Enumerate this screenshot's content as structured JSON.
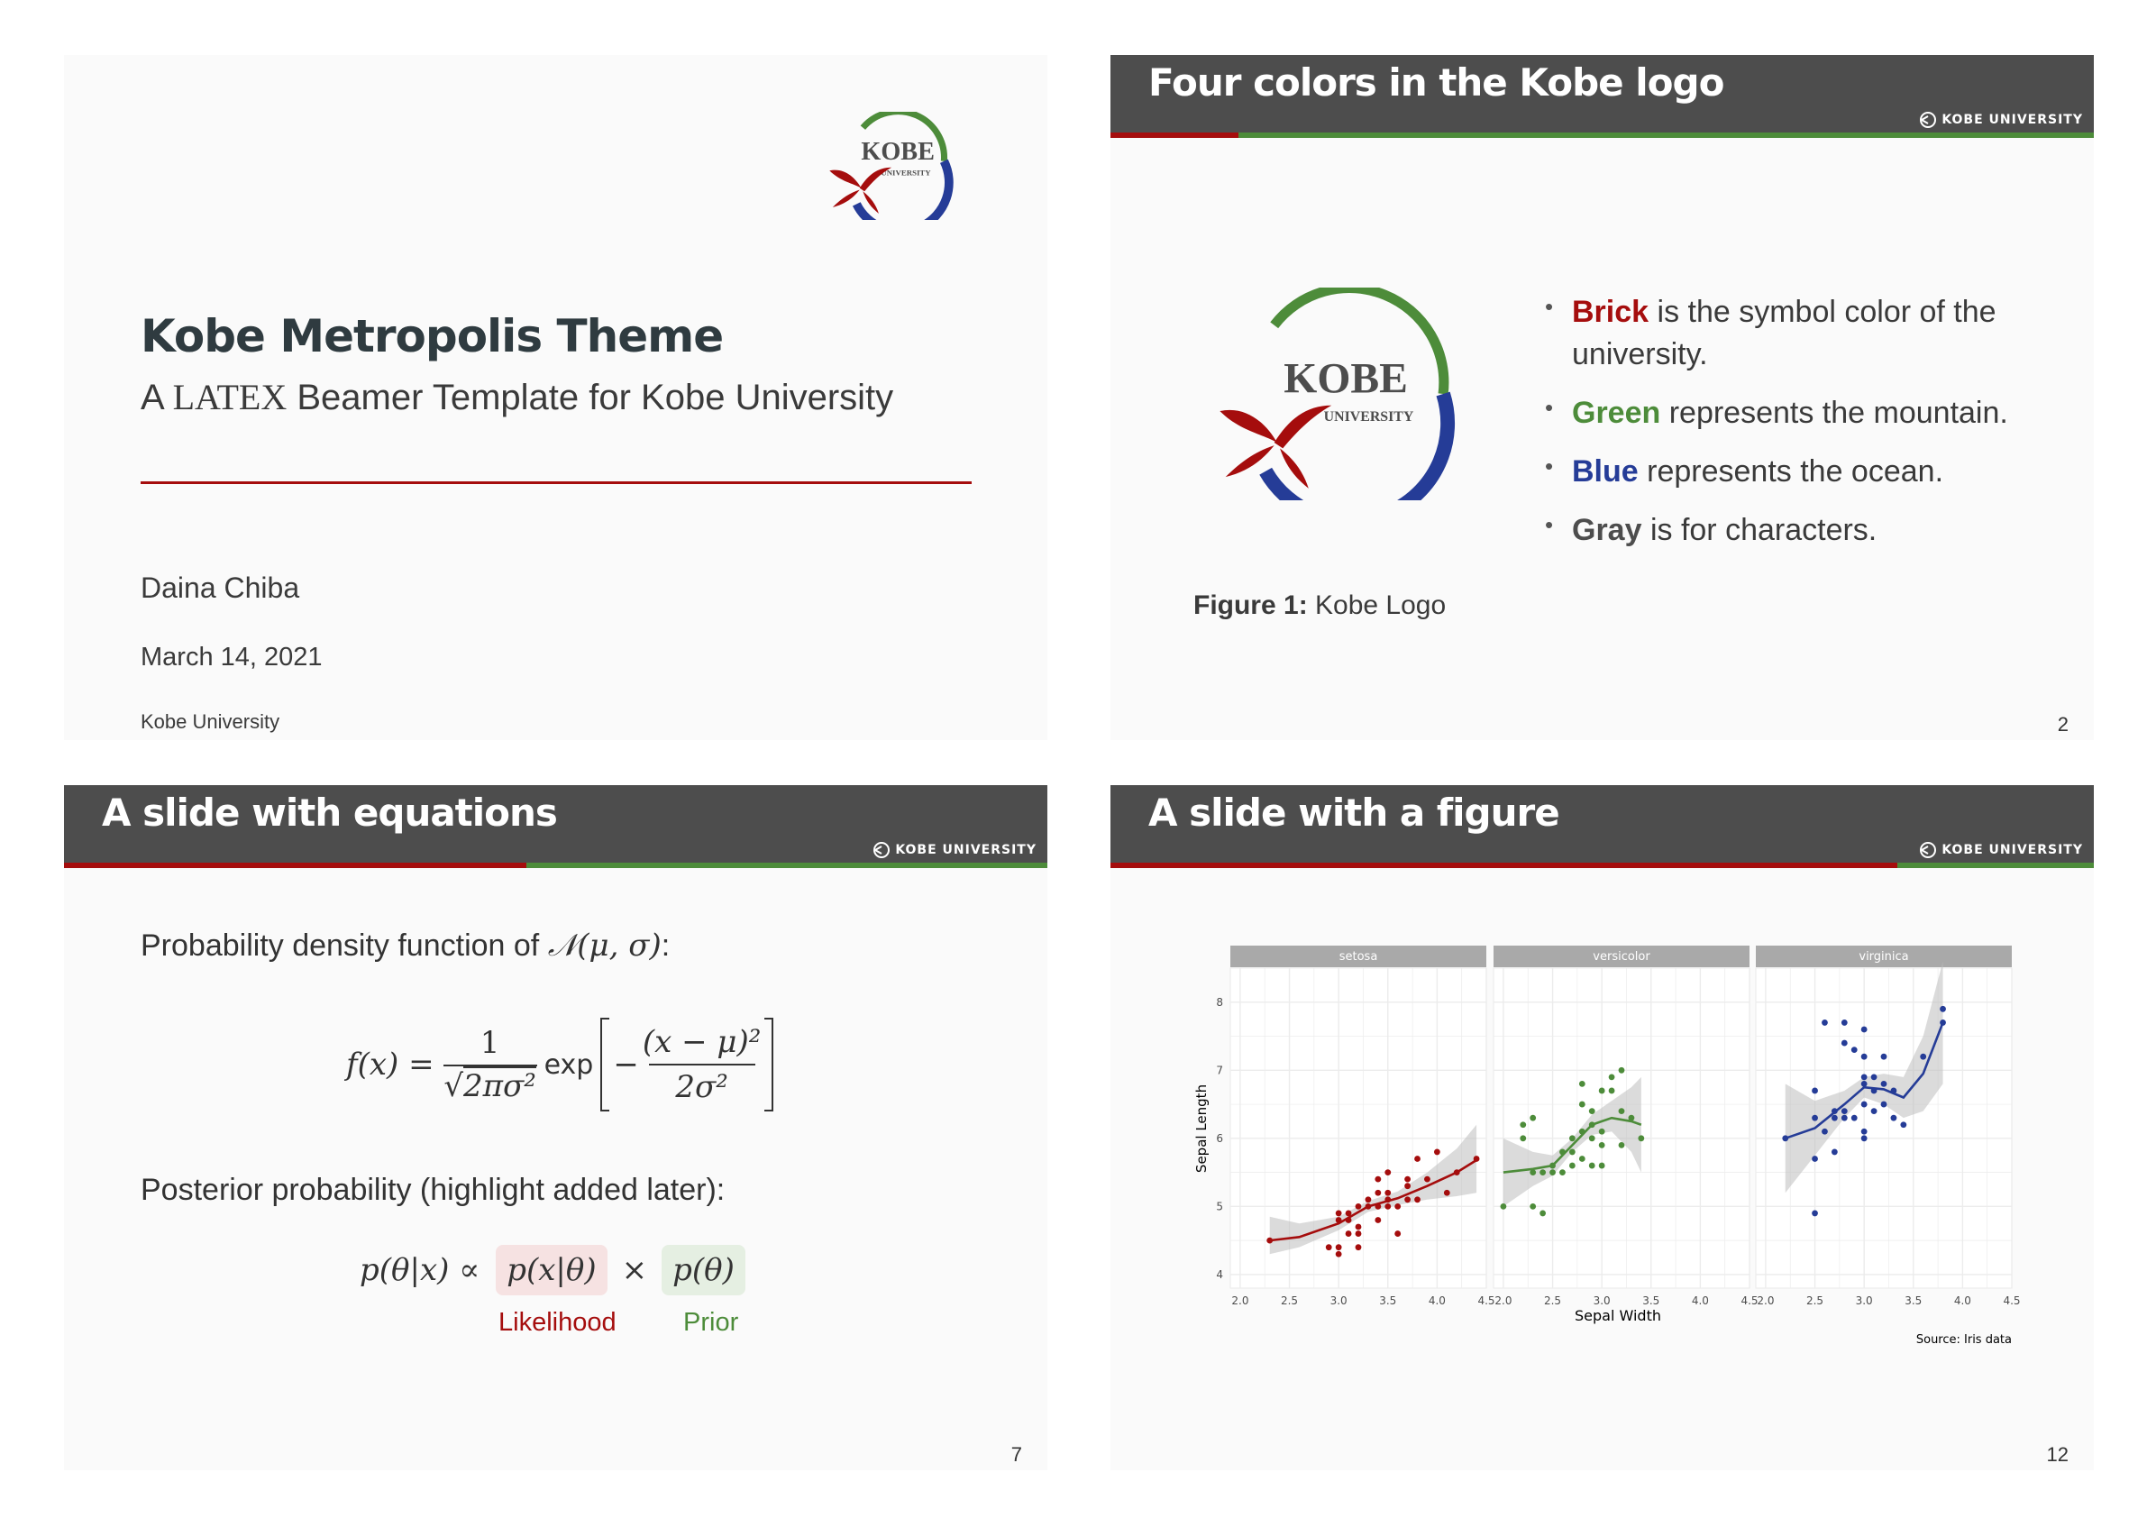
{
  "colors": {
    "brick": "#a50d0d",
    "green": "#4d8c3a",
    "blue": "#253c97",
    "gray": "#4d4d4d"
  },
  "slide1": {
    "title": "Kobe Metropolis Theme",
    "subtitle_prefix": "A",
    "subtitle_latex": "LATEX",
    "subtitle_suffix": "Beamer Template for Kobe University",
    "author": "Daina Chiba",
    "date": "March 14, 2021",
    "institute": "Kobe University",
    "logo_text": "KOBE",
    "logo_subtext": "UNIVERSITY"
  },
  "slide2": {
    "title": "Four colors in the Kobe logo",
    "brand": "KOBE UNIVERSITY",
    "progress": 0.13,
    "page": "2",
    "logo_text": "KOBE",
    "logo_subtext": "UNIVERSITY",
    "caption_label": "Figure 1:",
    "caption_text": "Kobe Logo",
    "bullets": [
      {
        "keyword": "Brick",
        "color": "#a50d0d",
        "rest": "is the symbol color of the university."
      },
      {
        "keyword": "Green",
        "color": "#4d8c3a",
        "rest": "represents the mountain."
      },
      {
        "keyword": "Blue",
        "color": "#253c97",
        "rest": "represents the ocean."
      },
      {
        "keyword": "Gray",
        "color": "#4d4d4d",
        "rest": "is for characters."
      }
    ]
  },
  "slide3": {
    "title": "A slide with equations",
    "brand": "KOBE UNIVERSITY",
    "progress": 0.47,
    "page": "7",
    "text1_prefix": "Probability density function of",
    "text1_math": "𝒩(μ, σ)",
    "text1_suffix": ":",
    "eq1": {
      "lhs": "f(x) =",
      "num": "1",
      "den_root": "√",
      "den": "2πσ²",
      "exp": "exp",
      "minus": "−",
      "inner_num": "(x − μ)²",
      "inner_den": "2σ²"
    },
    "text2": "Posterior probability (highlight added later):",
    "eq2": {
      "lhs": "p(θ|x) ∝",
      "likelihood": "p(x|θ)",
      "times": "×",
      "prior": "p(θ)"
    },
    "likelihood_label": "Likelihood",
    "prior_label": "Prior"
  },
  "slide4": {
    "title": "A slide with a figure",
    "brand": "KOBE UNIVERSITY",
    "progress": 0.8,
    "page": "12",
    "chart_data": {
      "type": "scatter",
      "facets": [
        "setosa",
        "versicolor",
        "virginica"
      ],
      "xlabel": "Sepal Width",
      "ylabel": "Sepal Length",
      "caption": "Source: Iris data",
      "xlim": [
        1.9,
        4.5
      ],
      "ylim": [
        3.8,
        8.5
      ],
      "xticks": [
        "2.0",
        "2.5",
        "3.0",
        "3.5",
        "4.0",
        "4.5"
      ],
      "yticks": [
        "4",
        "5",
        "6",
        "7",
        "8"
      ],
      "grid": true,
      "series": [
        {
          "name": "setosa",
          "color": "#a50d0d",
          "points": [
            [
              2.3,
              4.5
            ],
            [
              2.9,
              4.4
            ],
            [
              3.0,
              4.3
            ],
            [
              3.0,
              4.4
            ],
            [
              3.0,
              4.8
            ],
            [
              3.0,
              4.9
            ],
            [
              3.1,
              4.6
            ],
            [
              3.1,
              4.8
            ],
            [
              3.1,
              4.9
            ],
            [
              3.2,
              4.4
            ],
            [
              3.2,
              4.6
            ],
            [
              3.2,
              4.7
            ],
            [
              3.2,
              5.0
            ],
            [
              3.3,
              5.0
            ],
            [
              3.3,
              5.1
            ],
            [
              3.4,
              4.8
            ],
            [
              3.4,
              5.0
            ],
            [
              3.4,
              5.2
            ],
            [
              3.4,
              5.4
            ],
            [
              3.5,
              5.0
            ],
            [
              3.5,
              5.1
            ],
            [
              3.5,
              5.2
            ],
            [
              3.5,
              5.5
            ],
            [
              3.6,
              4.6
            ],
            [
              3.6,
              5.0
            ],
            [
              3.7,
              5.1
            ],
            [
              3.7,
              5.3
            ],
            [
              3.7,
              5.4
            ],
            [
              3.8,
              5.1
            ],
            [
              3.8,
              5.7
            ],
            [
              3.9,
              5.4
            ],
            [
              4.0,
              5.8
            ],
            [
              4.1,
              5.2
            ],
            [
              4.2,
              5.5
            ],
            [
              4.4,
              5.7
            ]
          ],
          "fit": [
            [
              2.3,
              4.5
            ],
            [
              2.6,
              4.55
            ],
            [
              3.0,
              4.75
            ],
            [
              3.3,
              5.0
            ],
            [
              3.6,
              5.12
            ],
            [
              3.9,
              5.3
            ],
            [
              4.2,
              5.5
            ],
            [
              4.4,
              5.68
            ]
          ],
          "band_lo": [
            4.3,
            4.4,
            4.65,
            4.92,
            5.02,
            5.1,
            5.15,
            5.2
          ],
          "band_hi": [
            4.85,
            4.75,
            4.85,
            5.08,
            5.22,
            5.5,
            5.85,
            6.2
          ]
        },
        {
          "name": "versicolor",
          "color": "#4d8c3a",
          "points": [
            [
              2.0,
              5.0
            ],
            [
              2.2,
              6.0
            ],
            [
              2.2,
              6.2
            ],
            [
              2.3,
              5.5
            ],
            [
              2.3,
              6.3
            ],
            [
              2.3,
              5.0
            ],
            [
              2.4,
              4.9
            ],
            [
              2.4,
              5.5
            ],
            [
              2.5,
              5.6
            ],
            [
              2.5,
              5.5
            ],
            [
              2.6,
              5.8
            ],
            [
              2.6,
              5.5
            ],
            [
              2.7,
              5.6
            ],
            [
              2.7,
              5.8
            ],
            [
              2.7,
              6.0
            ],
            [
              2.8,
              6.1
            ],
            [
              2.8,
              6.5
            ],
            [
              2.8,
              5.7
            ],
            [
              2.9,
              6.4
            ],
            [
              2.9,
              6.0
            ],
            [
              2.9,
              5.6
            ],
            [
              3.0,
              6.7
            ],
            [
              3.0,
              5.9
            ],
            [
              3.0,
              5.6
            ],
            [
              3.1,
              6.7
            ],
            [
              3.1,
              6.9
            ],
            [
              3.2,
              6.4
            ],
            [
              3.2,
              7.0
            ],
            [
              3.3,
              6.3
            ],
            [
              3.4,
              6.0
            ],
            [
              3.0,
              6.1
            ],
            [
              2.8,
              6.8
            ],
            [
              2.9,
              6.2
            ],
            [
              3.2,
              5.9
            ]
          ],
          "fit": [
            [
              2.0,
              5.5
            ],
            [
              2.3,
              5.55
            ],
            [
              2.5,
              5.6
            ],
            [
              2.7,
              5.9
            ],
            [
              2.9,
              6.2
            ],
            [
              3.1,
              6.3
            ],
            [
              3.3,
              6.25
            ],
            [
              3.4,
              6.2
            ]
          ],
          "band_lo": [
            5.0,
            5.3,
            5.45,
            5.8,
            6.05,
            6.1,
            5.8,
            5.5
          ],
          "band_hi": [
            6.0,
            5.8,
            5.75,
            6.0,
            6.35,
            6.55,
            6.75,
            6.9
          ]
        },
        {
          "name": "virginica",
          "color": "#253c97",
          "points": [
            [
              2.2,
              6.0
            ],
            [
              2.5,
              4.9
            ],
            [
              2.5,
              6.7
            ],
            [
              2.5,
              6.3
            ],
            [
              2.5,
              5.7
            ],
            [
              2.6,
              6.1
            ],
            [
              2.6,
              7.7
            ],
            [
              2.7,
              6.4
            ],
            [
              2.7,
              5.8
            ],
            [
              2.7,
              6.3
            ],
            [
              2.8,
              6.3
            ],
            [
              2.8,
              7.7
            ],
            [
              2.8,
              6.4
            ],
            [
              2.8,
              7.4
            ],
            [
              2.9,
              6.3
            ],
            [
              2.9,
              7.3
            ],
            [
              3.0,
              6.5
            ],
            [
              3.0,
              7.2
            ],
            [
              3.0,
              6.8
            ],
            [
              3.0,
              6.9
            ],
            [
              3.0,
              7.6
            ],
            [
              3.0,
              6.1
            ],
            [
              3.0,
              6.0
            ],
            [
              3.1,
              6.9
            ],
            [
              3.1,
              6.7
            ],
            [
              3.1,
              6.4
            ],
            [
              3.2,
              6.5
            ],
            [
              3.2,
              7.2
            ],
            [
              3.2,
              6.8
            ],
            [
              3.3,
              6.7
            ],
            [
              3.3,
              6.3
            ],
            [
              3.4,
              6.2
            ],
            [
              3.8,
              7.9
            ],
            [
              3.8,
              7.7
            ],
            [
              3.6,
              7.2
            ]
          ],
          "fit": [
            [
              2.2,
              6.0
            ],
            [
              2.5,
              6.15
            ],
            [
              2.8,
              6.5
            ],
            [
              3.0,
              6.75
            ],
            [
              3.2,
              6.72
            ],
            [
              3.4,
              6.6
            ],
            [
              3.6,
              6.95
            ],
            [
              3.8,
              7.7
            ]
          ],
          "band_lo": [
            5.2,
            5.75,
            6.3,
            6.6,
            6.5,
            6.3,
            6.4,
            6.8
          ],
          "band_hi": [
            6.8,
            6.55,
            6.7,
            6.9,
            6.95,
            6.9,
            7.5,
            8.6
          ]
        }
      ]
    }
  }
}
